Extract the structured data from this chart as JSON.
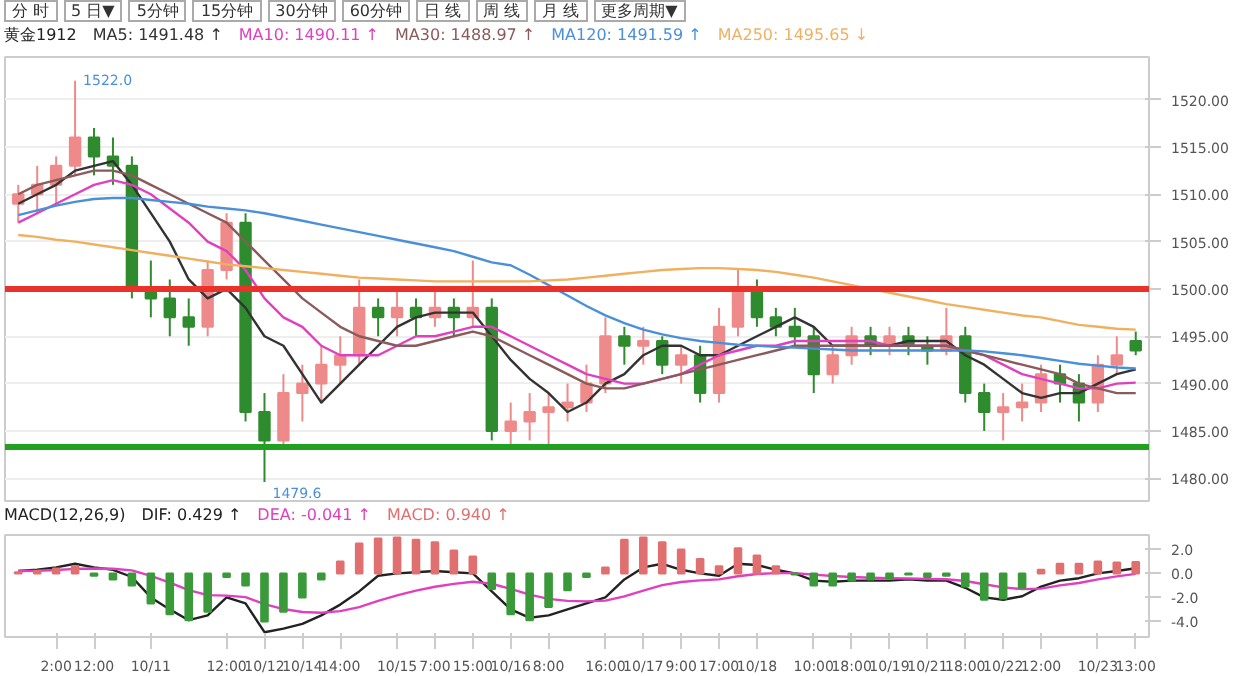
{
  "chart_data": [
    {
      "type": "candlestick",
      "title": "黄金1912",
      "categories": [
        null,
        null,
        null,
        null,
        null,
        null,
        null,
        null,
        null,
        null,
        null,
        null,
        null,
        null,
        null,
        null,
        null,
        null,
        null,
        null,
        null,
        null,
        null,
        null,
        null,
        null,
        null,
        null,
        null,
        null,
        null,
        null,
        null,
        null,
        null,
        null,
        null,
        null,
        null,
        null,
        null,
        null,
        null,
        null,
        null,
        null,
        null,
        null,
        null,
        null,
        null,
        null,
        null,
        null,
        null,
        null,
        null,
        null,
        null,
        null
      ],
      "ohlc": [
        [
          1509,
          1511,
          1507,
          1510
        ],
        [
          1510,
          1513,
          1508,
          1511
        ],
        [
          1511,
          1514,
          1509,
          1513
        ],
        [
          1513,
          1522,
          1512,
          1516
        ],
        [
          1516,
          1517,
          1512,
          1514
        ],
        [
          1514,
          1516,
          1511,
          1513
        ],
        [
          1513,
          1514,
          1499,
          1500
        ],
        [
          1500,
          1503,
          1497,
          1499
        ],
        [
          1499,
          1501,
          1495,
          1497
        ],
        [
          1497,
          1499,
          1494,
          1496
        ],
        [
          1496,
          1503,
          1495,
          1502
        ],
        [
          1502,
          1508,
          1501,
          1507
        ],
        [
          1507,
          1508,
          1486,
          1487
        ],
        [
          1487,
          1489,
          1479.6,
          1484
        ],
        [
          1484,
          1491,
          1483,
          1489
        ],
        [
          1489,
          1492,
          1486,
          1490
        ],
        [
          1490,
          1494,
          1488,
          1492
        ],
        [
          1492,
          1495,
          1490,
          1493
        ],
        [
          1493,
          1501,
          1492,
          1498
        ],
        [
          1498,
          1499,
          1495,
          1497
        ],
        [
          1497,
          1500,
          1495,
          1498
        ],
        [
          1498,
          1499,
          1495,
          1497
        ],
        [
          1497,
          1500,
          1496,
          1498
        ],
        [
          1498,
          1499,
          1495,
          1497
        ],
        [
          1497,
          1503,
          1496,
          1498
        ],
        [
          1498,
          1499,
          1484,
          1485
        ],
        [
          1485,
          1488,
          1483,
          1486
        ],
        [
          1486,
          1489,
          1484,
          1487
        ],
        [
          1487,
          1489,
          1483,
          1487.5
        ],
        [
          1487.5,
          1490,
          1486,
          1488
        ],
        [
          1488,
          1492,
          1487,
          1490
        ],
        [
          1490,
          1497,
          1489,
          1495
        ],
        [
          1495,
          1496,
          1492,
          1494
        ],
        [
          1494,
          1496,
          1492,
          1494.5
        ],
        [
          1494.5,
          1495,
          1491,
          1492
        ],
        [
          1492,
          1494,
          1490,
          1493
        ],
        [
          1493,
          1494,
          1488,
          1489
        ],
        [
          1489,
          1498,
          1488,
          1496
        ],
        [
          1496,
          1502,
          1495,
          1500
        ],
        [
          1500,
          1501,
          1496,
          1497
        ],
        [
          1497,
          1498,
          1495,
          1496
        ],
        [
          1496,
          1498,
          1494,
          1495
        ],
        [
          1495,
          1496,
          1489,
          1491
        ],
        [
          1491,
          1494,
          1490,
          1493
        ],
        [
          1493,
          1496,
          1492,
          1495
        ],
        [
          1495,
          1496,
          1493,
          1494
        ],
        [
          1494,
          1496,
          1493,
          1495
        ],
        [
          1495,
          1496,
          1493,
          1494
        ],
        [
          1494,
          1495,
          1492,
          1493.5
        ],
        [
          1493.5,
          1498,
          1493,
          1495
        ],
        [
          1495,
          1496,
          1488,
          1489
        ],
        [
          1489,
          1490,
          1485,
          1487
        ],
        [
          1487,
          1489,
          1484,
          1487.5
        ],
        [
          1487.5,
          1490,
          1486,
          1488
        ],
        [
          1488,
          1492,
          1487,
          1491
        ],
        [
          1491,
          1492,
          1488,
          1490
        ],
        [
          1490,
          1491,
          1486,
          1488
        ],
        [
          1488,
          1493,
          1487,
          1492
        ],
        [
          1492,
          1495,
          1491,
          1493
        ],
        [
          1494.5,
          1495.5,
          1493,
          1493.5
        ]
      ],
      "colors": [
        "#ef8a8a",
        "#ef8a8a",
        "#ef8a8a",
        "#ef8a8a",
        "#2e8b2e",
        "#2e8b2e",
        "#2e8b2e",
        "#2e8b2e",
        "#2e8b2e",
        "#2e8b2e",
        "#ef8a8a",
        "#ef8a8a",
        "#2e8b2e",
        "#2e8b2e",
        "#ef8a8a",
        "#ef8a8a",
        "#ef8a8a",
        "#ef8a8a",
        "#ef8a8a",
        "#2e8b2e",
        "#ef8a8a",
        "#2e8b2e",
        "#ef8a8a",
        "#2e8b2e",
        "#ef8a8a",
        "#2e8b2e",
        "#ef8a8a",
        "#ef8a8a",
        "#ef8a8a",
        "#ef8a8a",
        "#ef8a8a",
        "#ef8a8a",
        "#2e8b2e",
        "#ef8a8a",
        "#2e8b2e",
        "#ef8a8a",
        "#2e8b2e",
        "#ef8a8a",
        "#ef8a8a",
        "#2e8b2e",
        "#2e8b2e",
        "#2e8b2e",
        "#2e8b2e",
        "#ef8a8a",
        "#ef8a8a",
        "#2e8b2e",
        "#ef8a8a",
        "#2e8b2e",
        "#2e8b2e",
        "#ef8a8a",
        "#2e8b2e",
        "#2e8b2e",
        "#ef8a8a",
        "#ef8a8a",
        "#ef8a8a",
        "#2e8b2e",
        "#2e8b2e",
        "#ef8a8a",
        "#ef8a8a",
        "#2e8b2e"
      ],
      "series": [
        {
          "type": "line",
          "name": "MA5: 1491.48 ↑",
          "color": "#333333",
          "values": [
            1509,
            1510,
            1511,
            1512.5,
            1513,
            1513.5,
            1511,
            1508,
            1505,
            1501,
            1499,
            1500,
            1498,
            1495,
            1494,
            1491,
            1488,
            1490,
            1492,
            1494,
            1496,
            1497,
            1497.5,
            1497.5,
            1497.5,
            1495,
            1492.5,
            1490.5,
            1489,
            1487,
            1488,
            1490,
            1491,
            1493,
            1494,
            1494,
            1493,
            1493,
            1494,
            1495,
            1496,
            1497,
            1496,
            1494,
            1494,
            1494,
            1494,
            1494.5,
            1494.5,
            1494.5,
            1493,
            1492,
            1490.5,
            1489,
            1488.5,
            1489,
            1489,
            1490,
            1491,
            1491.5
          ]
        },
        {
          "type": "line",
          "name": "MA10: 1490.11 ↑",
          "color": "#e040c0",
          "values": [
            1507,
            1508,
            1509,
            1510,
            1511,
            1511.5,
            1511,
            1510,
            1508.5,
            1507,
            1505,
            1504,
            1502,
            1499,
            1497,
            1496,
            1494,
            1493,
            1493,
            1493,
            1494,
            1495,
            1495,
            1495.5,
            1496,
            1496,
            1495,
            1494,
            1493,
            1492,
            1491,
            1490.5,
            1490,
            1490,
            1490.5,
            1491,
            1492,
            1493,
            1493.5,
            1494,
            1494,
            1494.5,
            1494.5,
            1494.5,
            1494.5,
            1494.5,
            1494,
            1494,
            1494,
            1494,
            1493.5,
            1493,
            1492,
            1491,
            1490.5,
            1490,
            1489.5,
            1489.5,
            1490,
            1490.1
          ]
        },
        {
          "type": "line",
          "name": "MA30: 1488.97 ↑",
          "color": "#8b5a5a",
          "values": [
            1510,
            1511,
            1511.5,
            1512,
            1512.5,
            1512.5,
            1512,
            1511,
            1510,
            1509,
            1508,
            1507,
            1505,
            1503,
            1501,
            1499,
            1497.5,
            1496,
            1495,
            1494.5,
            1494,
            1494,
            1494.5,
            1495,
            1495.5,
            1495,
            1494,
            1493,
            1492,
            1491,
            1490,
            1489.5,
            1489.5,
            1490,
            1490.5,
            1491,
            1491.5,
            1492,
            1492.5,
            1493,
            1493.5,
            1494,
            1494,
            1494,
            1494,
            1494,
            1494,
            1494,
            1494,
            1494,
            1493.5,
            1493,
            1492.5,
            1492,
            1491.5,
            1491,
            1490,
            1489.5,
            1489,
            1489
          ]
        },
        {
          "type": "line",
          "name": "MA120: 1491.59 ↑",
          "color": "#4a90d9",
          "values": [
            1507.8,
            1508.3,
            1508.8,
            1509.2,
            1509.5,
            1509.6,
            1509.6,
            1509.4,
            1509.2,
            1509,
            1508.7,
            1508.5,
            1508.3,
            1508,
            1507.6,
            1507.2,
            1506.8,
            1506.4,
            1506,
            1505.6,
            1505.2,
            1504.8,
            1504.4,
            1504,
            1503.4,
            1502.8,
            1502.5,
            1501.5,
            1500.4,
            1499.3,
            1498.2,
            1497.2,
            1496.4,
            1495.7,
            1495.2,
            1494.8,
            1494.5,
            1494.3,
            1494.1,
            1494,
            1493.9,
            1493.8,
            1493.7,
            1493.6,
            1493.5,
            1493.5,
            1493.5,
            1493.5,
            1493.5,
            1493.5,
            1493.5,
            1493.4,
            1493.2,
            1493,
            1492.7,
            1492.4,
            1492.1,
            1491.9,
            1491.7,
            1491.6
          ]
        },
        {
          "type": "line",
          "name": "MA250: 1495.65 ↓",
          "color": "#f0b060",
          "values": [
            1505.7,
            1505.5,
            1505.2,
            1505,
            1504.7,
            1504.4,
            1504.1,
            1503.8,
            1503.5,
            1503.2,
            1502.9,
            1502.6,
            1502.4,
            1502.2,
            1502,
            1501.8,
            1501.6,
            1501.4,
            1501.2,
            1501.1,
            1501,
            1500.9,
            1500.8,
            1500.8,
            1500.8,
            1500.8,
            1500.8,
            1500.8,
            1500.9,
            1501,
            1501.2,
            1501.4,
            1501.6,
            1501.8,
            1502,
            1502.1,
            1502.2,
            1502.2,
            1502.1,
            1502,
            1501.8,
            1501.5,
            1501.2,
            1500.8,
            1500.4,
            1500,
            1499.6,
            1499.2,
            1498.8,
            1498.4,
            1498.1,
            1497.8,
            1497.5,
            1497.2,
            1497,
            1496.6,
            1496.2,
            1496,
            1495.8,
            1495.7
          ]
        }
      ],
      "ylim": [
        1477.6,
        1524.5
      ],
      "yticks": [
        {
          "value": 1480,
          "label": "1480.00"
        },
        {
          "value": 1485,
          "label": "1485.00"
        },
        {
          "value": 1490,
          "label": "1490.00"
        },
        {
          "value": 1495,
          "label": "1495.00"
        },
        {
          "value": 1500,
          "label": "1500.00"
        },
        {
          "value": 1505,
          "label": "1505.00"
        },
        {
          "value": 1510,
          "label": "1510.00"
        },
        {
          "value": 1515,
          "label": "1515.00"
        },
        {
          "value": 1520,
          "label": "1520.00"
        }
      ],
      "ref_lines": [
        {
          "axis": "y",
          "value": 1500,
          "color": "#e8322a"
        },
        {
          "axis": "y",
          "value": 1483.3,
          "color": "#22a022"
        }
      ],
      "annotations": [
        "1522.0",
        "1479.6",
        "分 时",
        "5 日▼",
        "5分钟",
        "15分钟",
        "30分钟",
        "60分钟",
        "日 线",
        "周 线",
        "月 线",
        "更多周期▼"
      ],
      "grid": "y",
      "tick_labels": "y"
    },
    {
      "type": "bar",
      "title": "MACD(12,26,9)",
      "categories": [
        null,
        null,
        "2:00",
        null,
        "12:00",
        null,
        null,
        "10/11",
        null,
        null,
        null,
        "12:00",
        null,
        "10/12",
        null,
        "10/14",
        null,
        "14:00",
        null,
        null,
        "10/15",
        null,
        "7:00",
        null,
        "15:00",
        null,
        "10/16",
        null,
        "8:00",
        null,
        null,
        "16:00",
        null,
        "10/17",
        null,
        "9:00",
        null,
        "17:00",
        null,
        "10/18",
        null,
        null,
        "10:00",
        null,
        "18:00",
        null,
        "10/19",
        null,
        "10/21",
        null,
        "18:00",
        null,
        "10/22",
        null,
        "12:00",
        null,
        null,
        "10/23",
        null,
        "13:00"
      ],
      "series": [
        {
          "type": "line",
          "name": "DIF: 0.429 ↑",
          "color": "#222222",
          "values": [
            0.2,
            0.3,
            0.5,
            0.8,
            0.5,
            0.3,
            -0.3,
            -2.0,
            -3.0,
            -3.9,
            -3.5,
            -2.0,
            -2.5,
            -4.9,
            -4.6,
            -4.2,
            -3.5,
            -2.6,
            -1.5,
            -0.2,
            0,
            0.1,
            0.2,
            0.1,
            0,
            -1.5,
            -3.0,
            -3.7,
            -3.5,
            -3.0,
            -2.5,
            -2.0,
            -0.5,
            0.5,
            0.8,
            0.3,
            0,
            -0.2,
            0.8,
            0.7,
            0.3,
            0,
            -0.6,
            -0.7,
            -0.6,
            -0.6,
            -0.6,
            -0.5,
            -0.6,
            -0.6,
            -1.2,
            -2.0,
            -2.2,
            -1.9,
            -1.1,
            -0.6,
            -0.4,
            0,
            0.2,
            0.43
          ]
        },
        {
          "type": "line",
          "name": "DEA: -0.041 ↑",
          "color": "#e040c0",
          "values": [
            0.2,
            0.22,
            0.28,
            0.38,
            0.41,
            0.39,
            0.25,
            -0.2,
            -0.76,
            -1.39,
            -1.81,
            -1.85,
            -1.98,
            -2.56,
            -2.97,
            -3.22,
            -3.28,
            -3.14,
            -2.81,
            -2.29,
            -1.83,
            -1.44,
            -1.11,
            -0.87,
            -0.7,
            -0.86,
            -1.29,
            -1.77,
            -2.12,
            -2.29,
            -2.33,
            -2.27,
            -1.92,
            -1.43,
            -0.98,
            -0.72,
            -0.58,
            -0.5,
            -0.24,
            -0.05,
            0.02,
            0.02,
            -0.1,
            -0.22,
            -0.3,
            -0.36,
            -0.41,
            -0.43,
            -0.46,
            -0.49,
            -0.63,
            -0.9,
            -1.16,
            -1.31,
            -1.27,
            -1.0,
            -0.8,
            -0.5,
            -0.25,
            -0.04
          ]
        },
        {
          "type": "bar",
          "name": "MACD: 0.940 ↑",
          "colors": [
            "#e07070",
            "#e07070",
            "#e07070",
            "#e07070",
            "#3a9a3a",
            "#3a9a3a",
            "#3a9a3a",
            "#3a9a3a",
            "#3a9a3a",
            "#3a9a3a",
            "#3a9a3a",
            "#3a9a3a",
            "#3a9a3a",
            "#3a9a3a",
            "#3a9a3a",
            "#3a9a3a",
            "#3a9a3a",
            "#e07070",
            "#e07070",
            "#e07070",
            "#e07070",
            "#e07070",
            "#e07070",
            "#e07070",
            "#e07070",
            "#3a9a3a",
            "#3a9a3a",
            "#3a9a3a",
            "#3a9a3a",
            "#3a9a3a",
            "#3a9a3a",
            "#e07070",
            "#e07070",
            "#e07070",
            "#e07070",
            "#e07070",
            "#e07070",
            "#e07070",
            "#e07070",
            "#e07070",
            "#e07070",
            "#3a9a3a",
            "#3a9a3a",
            "#3a9a3a",
            "#3a9a3a",
            "#3a9a3a",
            "#3a9a3a",
            "#3a9a3a",
            "#3a9a3a",
            "#3a9a3a",
            "#3a9a3a",
            "#3a9a3a",
            "#3a9a3a",
            "#3a9a3a",
            "#e07070",
            "#e07070",
            "#e07070",
            "#e07070",
            "#e07070",
            "#e07070"
          ],
          "values": [
            0.1,
            0.2,
            0.4,
            0.6,
            -0.2,
            -0.5,
            -1.0,
            -2.5,
            -3.4,
            -3.9,
            -3.2,
            -0.3,
            -1.0,
            -4.0,
            -3.2,
            -2.0,
            -0.5,
            1.0,
            2.5,
            2.9,
            3.0,
            2.8,
            2.6,
            1.9,
            1.4,
            -1.3,
            -3.4,
            -3.9,
            -2.8,
            -1.4,
            -0.3,
            0.5,
            2.8,
            3.0,
            2.6,
            2.0,
            1.2,
            0.6,
            2.1,
            1.5,
            0.6,
            -0.1,
            -1.0,
            -1.0,
            -0.6,
            -0.5,
            -0.4,
            -0.1,
            -0.3,
            -0.2,
            -1.1,
            -2.2,
            -2.1,
            -1.2,
            0.3,
            0.8,
            0.8,
            1.0,
            0.9,
            0.94
          ]
        }
      ],
      "ylim": [
        -5.3,
        3.2
      ],
      "yticks": [
        {
          "value": 2,
          "label": "2.0"
        },
        {
          "value": 0,
          "label": "0.0"
        },
        {
          "value": -2,
          "label": "-2.0"
        },
        {
          "value": -4,
          "label": "-4.0"
        }
      ]
    }
  ]
}
